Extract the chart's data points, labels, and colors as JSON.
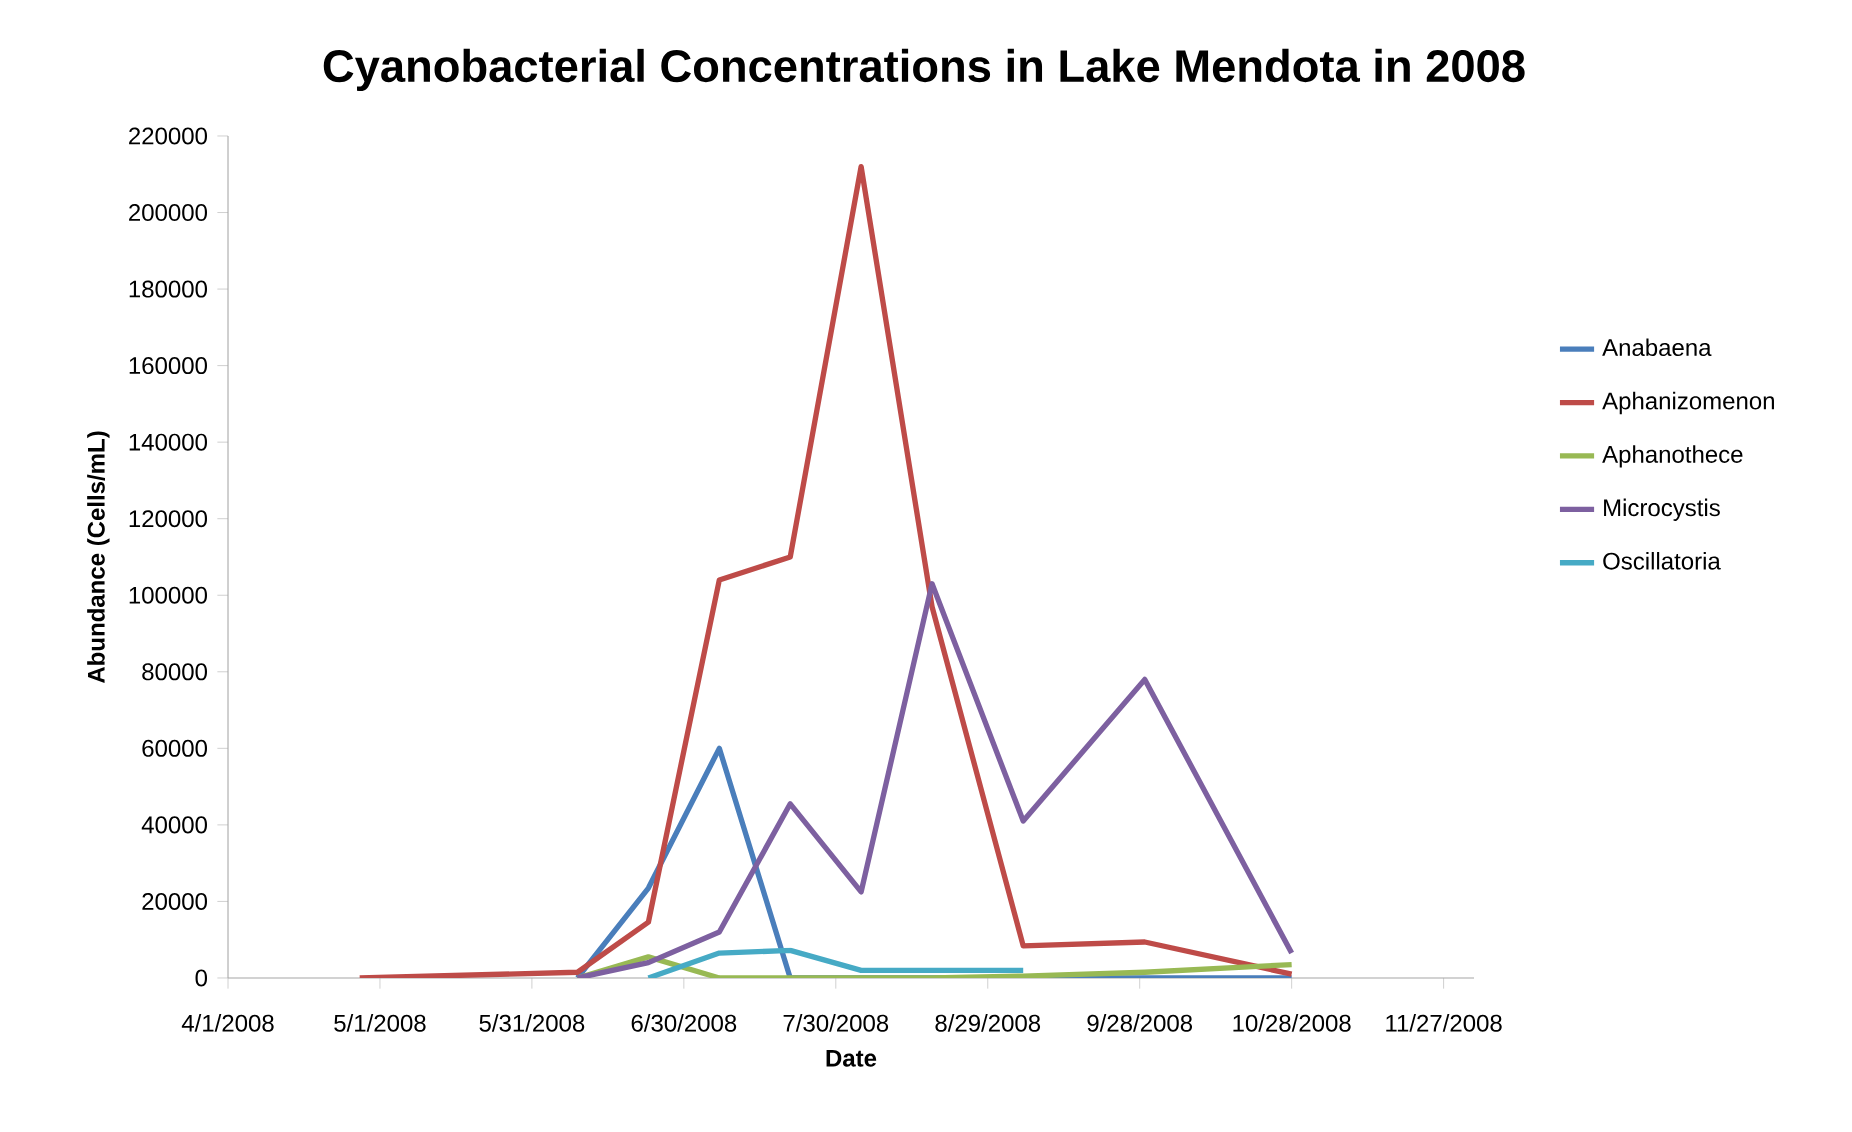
{
  "chart_data": {
    "type": "line",
    "title": "Cyanobacterial Concentrations in Lake Mendota in 2008",
    "xlabel": "Date",
    "ylabel": "Abundance (Cells/mL)",
    "x": [
      "2008-04-27",
      "2008-06-09",
      "2008-06-23",
      "2008-07-07",
      "2008-07-21",
      "2008-08-04",
      "2008-08-18",
      "2008-09-05",
      "2008-09-29",
      "2008-10-28"
    ],
    "series": [
      {
        "name": "Anabaena",
        "color": "#4a7ebb",
        "values": [
          null,
          0,
          23500,
          60000,
          0,
          0,
          0,
          0,
          0,
          0
        ]
      },
      {
        "name": "Aphanizomenon",
        "color": "#be4b48",
        "values": [
          0,
          1500,
          14600,
          104000,
          110000,
          212000,
          97000,
          8400,
          9400,
          1000
        ]
      },
      {
        "name": "Aphanothece",
        "color": "#98b954",
        "values": [
          null,
          0,
          5500,
          0,
          0,
          0,
          0,
          500,
          1500,
          3500
        ]
      },
      {
        "name": "Microcystis",
        "color": "#7d60a0",
        "values": [
          null,
          0,
          4000,
          12000,
          45500,
          22500,
          103000,
          41000,
          78000,
          6500
        ]
      },
      {
        "name": "Oscillatoria",
        "color": "#46aac5",
        "values": [
          null,
          null,
          0,
          6500,
          7200,
          2000,
          2000,
          2000,
          null,
          null
        ]
      }
    ],
    "xlim": [
      "2008-04-01",
      "2008-12-03"
    ],
    "xticks": [
      {
        "value": "2008-04-01",
        "label": "4/1/2008"
      },
      {
        "value": "2008-05-01",
        "label": "5/1/2008"
      },
      {
        "value": "2008-05-31",
        "label": "5/31/2008"
      },
      {
        "value": "2008-06-30",
        "label": "6/30/2008"
      },
      {
        "value": "2008-07-30",
        "label": "7/30/2008"
      },
      {
        "value": "2008-08-29",
        "label": "8/29/2008"
      },
      {
        "value": "2008-09-28",
        "label": "9/28/2008"
      },
      {
        "value": "2008-10-28",
        "label": "10/28/2008"
      },
      {
        "value": "2008-11-27",
        "label": "11/27/2008"
      }
    ],
    "ylim": [
      0,
      220000
    ],
    "yticks": [
      0,
      20000,
      40000,
      60000,
      80000,
      100000,
      120000,
      140000,
      160000,
      180000,
      200000,
      220000
    ],
    "legend": "right",
    "grid": false,
    "marker": "none",
    "line_style": "solid"
  }
}
